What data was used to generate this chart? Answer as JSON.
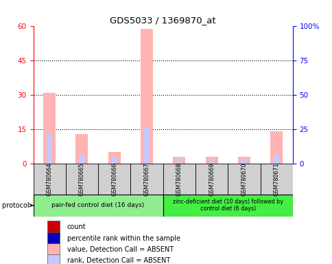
{
  "title": "GDS5033 / 1369870_at",
  "samples": [
    "GSM780664",
    "GSM780665",
    "GSM780666",
    "GSM780667",
    "GSM780668",
    "GSM780669",
    "GSM780670",
    "GSM780671"
  ],
  "value_absent": [
    31,
    13,
    5,
    59,
    3,
    3,
    3,
    14
  ],
  "rank_absent": [
    13,
    4,
    3,
    16,
    3,
    2,
    2,
    4
  ],
  "ylim_left": [
    0,
    60
  ],
  "ylim_right": [
    0,
    100
  ],
  "yticks_left": [
    0,
    15,
    30,
    45,
    60
  ],
  "yticks_right": [
    0,
    25,
    50,
    75,
    100
  ],
  "ytick_labels_right": [
    "0",
    "25",
    "50",
    "75",
    "100%"
  ],
  "color_count": "#cc0000",
  "color_percentile": "#0000cc",
  "color_value_absent": "#ffb3b3",
  "color_rank_absent": "#c8c8ff",
  "group1_label": "pair-fed control diet (16 days)",
  "group2_label": "zinc-deficient diet (10 days) followed by\ncontrol diet (6 days)",
  "group1_indices": [
    0,
    1,
    2,
    3
  ],
  "group2_indices": [
    4,
    5,
    6,
    7
  ],
  "group1_color": "#90ee90",
  "group2_color": "#44ee44",
  "sample_box_color": "#d0d0d0",
  "growth_protocol_label": "growth protocol",
  "legend_items": [
    {
      "label": "count",
      "color": "#cc0000"
    },
    {
      "label": "percentile rank within the sample",
      "color": "#0000bb"
    },
    {
      "label": "value, Detection Call = ABSENT",
      "color": "#ffb3b3"
    },
    {
      "label": "rank, Detection Call = ABSENT",
      "color": "#c8c8ff"
    }
  ]
}
